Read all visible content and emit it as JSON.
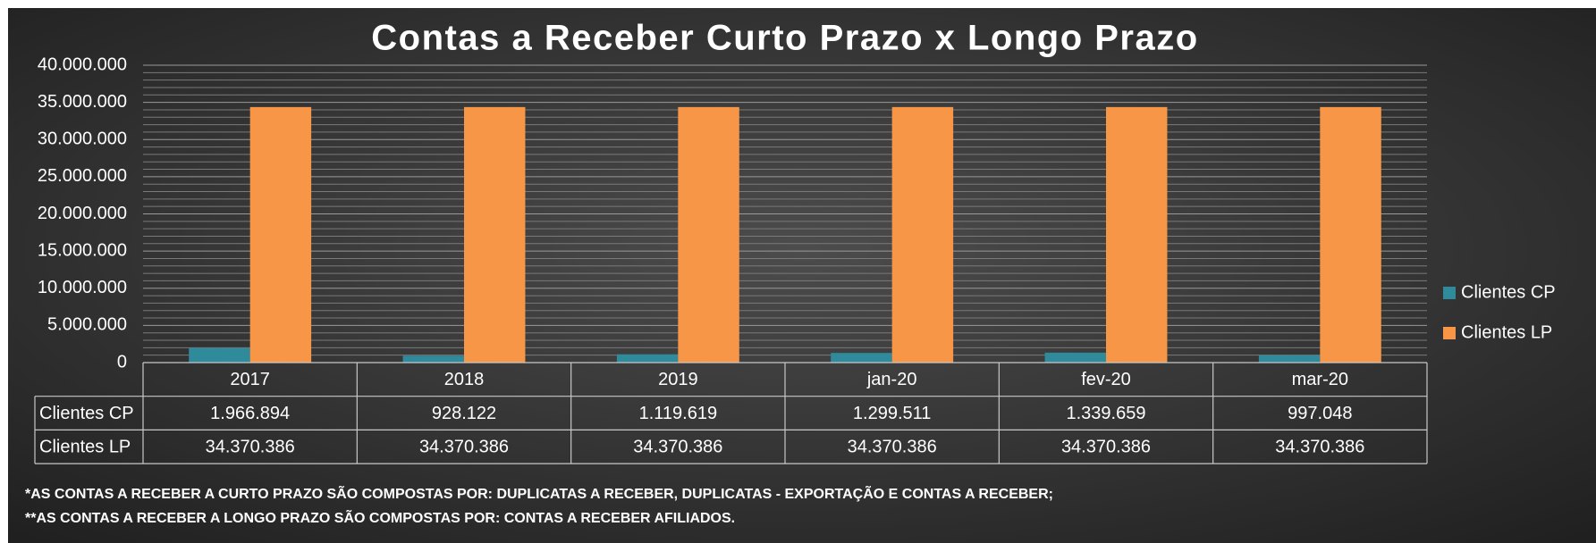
{
  "chart_data": {
    "type": "bar",
    "title": "Contas a Receber Curto Prazo x Longo Prazo",
    "categories": [
      "2017",
      "2018",
      "2019",
      "jan-20",
      "fev-20",
      "mar-20"
    ],
    "series": [
      {
        "name": "Clientes CP",
        "color": "#2f8a9c",
        "values": [
          1966894,
          928122,
          1119619,
          1299511,
          1339659,
          997048
        ],
        "value_labels": [
          "1.966.894",
          "928.122",
          "1.119.619",
          "1.299.511",
          "1.339.659",
          "997.048"
        ]
      },
      {
        "name": "Clientes LP",
        "color": "#f79646",
        "values": [
          34370386,
          34370386,
          34370386,
          34370386,
          34370386,
          34370386
        ],
        "value_labels": [
          "34.370.386",
          "34.370.386",
          "34.370.386",
          "34.370.386",
          "34.370.386",
          "34.370.386"
        ]
      }
    ],
    "ylim": [
      0,
      40000000
    ],
    "yticks": [
      0,
      {
        "value": 5000000,
        "label": "5.000.000"
      },
      {
        "value": 10000000,
        "label": "10.000.000"
      },
      {
        "value": 15000000,
        "label": "15.000.000"
      },
      {
        "value": 20000000,
        "label": "20.000.000"
      },
      {
        "value": 25000000,
        "label": "25.000.000"
      },
      {
        "value": 30000000,
        "label": "30.000.000"
      },
      {
        "value": 35000000,
        "label": "35.000.000"
      },
      {
        "value": 40000000,
        "label": "40.000.000"
      }
    ],
    "grid": true,
    "minor_grid": true,
    "legend": "right",
    "data_table": true,
    "annotations": [
      "*AS CONTAS A RECEBER A CURTO PRAZO SÃO COMPOSTAS POR: DUPLICATAS A RECEBER, DUPLICATAS - EXPORTAÇÃO E CONTAS A RECEBER;",
      "**AS CONTAS A RECEBER A LONGO PRAZO SÃO COMPOSTAS POR: CONTAS A RECEBER AFILIADOS."
    ]
  }
}
